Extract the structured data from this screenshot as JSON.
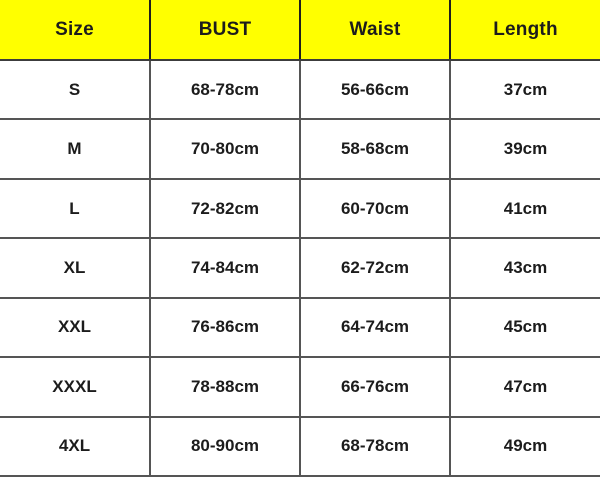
{
  "colors": {
    "header_bg": "#ffff00",
    "border_color": "#555555",
    "header_line": "#1f1f1f",
    "text_color": "#1c1c1c",
    "page_bg": "#ffffff"
  },
  "chart_data": {
    "type": "table",
    "columns": [
      "Size",
      "BUST",
      "Waist",
      "Length"
    ],
    "rows": [
      [
        "S",
        "68-78cm",
        "56-66cm",
        "37cm"
      ],
      [
        "M",
        "70-80cm",
        "58-68cm",
        "39cm"
      ],
      [
        "L",
        "72-82cm",
        "60-70cm",
        "41cm"
      ],
      [
        "XL",
        "74-84cm",
        "62-72cm",
        "43cm"
      ],
      [
        "XXL",
        "76-86cm",
        "64-74cm",
        "45cm"
      ],
      [
        "XXXL",
        "78-88cm",
        "66-76cm",
        "47cm"
      ],
      [
        "4XL",
        "80-90cm",
        "68-78cm",
        "49cm"
      ]
    ]
  }
}
